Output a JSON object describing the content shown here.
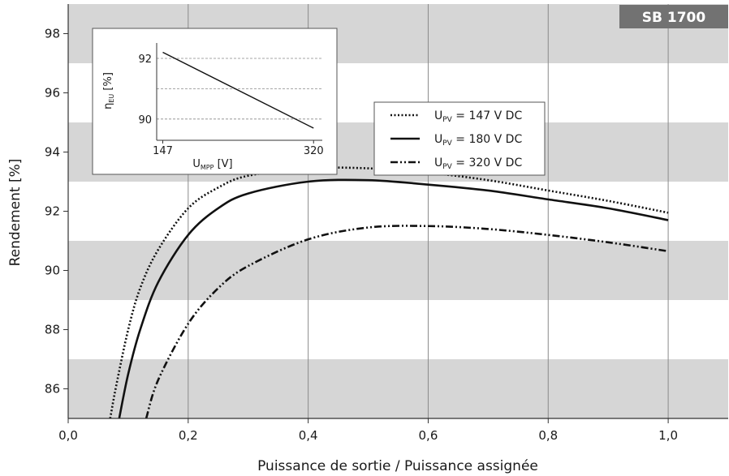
{
  "chart_data": {
    "type": "line",
    "badge": "SB 1700",
    "xlabel": "Puissance de sortie / Puissance assignée",
    "ylabel": "Rendement [%]",
    "xlim": [
      0,
      1.1
    ],
    "ylim": [
      85,
      99
    ],
    "x_ticks": [
      "0,0",
      "0,2",
      "0,4",
      "0,6",
      "0,8",
      "1,0"
    ],
    "y_ticks": [
      "86",
      "88",
      "90",
      "92",
      "94",
      "96",
      "98"
    ],
    "grid": "vertical lines with alternating grey horizontal bands",
    "legend_position": "top-right",
    "series": [
      {
        "name_main": "U",
        "name_sub": "PV",
        "name_rest": " = 147 V DC",
        "style": "dotted",
        "x": [
          0.07,
          0.08,
          0.1,
          0.12,
          0.15,
          0.2,
          0.25,
          0.3,
          0.4,
          0.5,
          0.6,
          0.7,
          0.8,
          0.9,
          1.0
        ],
        "y": [
          85.0,
          86.1,
          88.0,
          89.4,
          90.7,
          92.1,
          92.8,
          93.2,
          93.45,
          93.45,
          93.3,
          93.05,
          92.7,
          92.35,
          91.95
        ]
      },
      {
        "name_main": "U",
        "name_sub": "PV",
        "name_rest": " = 180 V DC",
        "style": "solid",
        "x": [
          0.085,
          0.1,
          0.12,
          0.15,
          0.2,
          0.25,
          0.3,
          0.4,
          0.5,
          0.6,
          0.7,
          0.8,
          0.9,
          1.0
        ],
        "y": [
          85.0,
          86.5,
          88.0,
          89.6,
          91.2,
          92.1,
          92.6,
          93.0,
          93.05,
          92.9,
          92.7,
          92.4,
          92.1,
          91.7
        ]
      },
      {
        "name_main": "U",
        "name_sub": "PV",
        "name_rest": " = 320 V DC",
        "style": "dash-dot",
        "x": [
          0.13,
          0.15,
          0.2,
          0.25,
          0.3,
          0.4,
          0.5,
          0.6,
          0.7,
          0.8,
          0.9,
          1.0
        ],
        "y": [
          85.0,
          86.3,
          88.2,
          89.4,
          90.15,
          91.05,
          91.45,
          91.5,
          91.4,
          91.2,
          90.95,
          90.65
        ]
      }
    ],
    "inset": {
      "xlabel_main": "U",
      "xlabel_sub": "MPP",
      "xlabel_rest": " [V]",
      "ylabel_main": "η",
      "ylabel_sub": "EU",
      "ylabel_rest": " [%]",
      "x_ticks": [
        "147",
        "320"
      ],
      "y_ticks": [
        "92",
        "90"
      ],
      "xlim": [
        140,
        330
      ],
      "ylim": [
        89.3,
        92.4
      ],
      "x": [
        147,
        320
      ],
      "y": [
        92.2,
        89.7
      ]
    }
  }
}
